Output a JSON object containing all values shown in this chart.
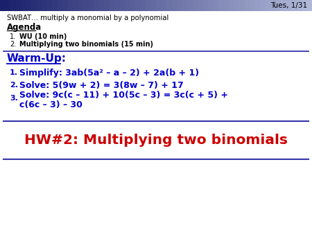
{
  "bg_color": "#ffffff",
  "date_text": "Tues, 1/31",
  "swbat_text": "SWBAT… multiply a monomial by a polynomial",
  "agenda_title": "Agenda",
  "agenda_items": [
    "WU (10 min)",
    "Multiplying two binomials (15 min)"
  ],
  "warmup_title": "Warm-Up:",
  "wu_item1": "Simplify: 3ab(5a² – a – 2) + 2a(b + 1)",
  "wu_item2": "Solve: 5(9w + 2) = 3(8w – 7) + 17",
  "wu_item3a": "Solve: 9c(c – 11) + 10(5c – 3) = 3c(c + 5) +",
  "wu_item3b": "c(6c – 3) – 30",
  "hw_text": "HW#2: Multiplying two binomials",
  "blue_color": "#0000cc",
  "red_color": "#cc0000",
  "black_color": "#000000",
  "navy_color": "#000080",
  "line_color": "#3333aa"
}
